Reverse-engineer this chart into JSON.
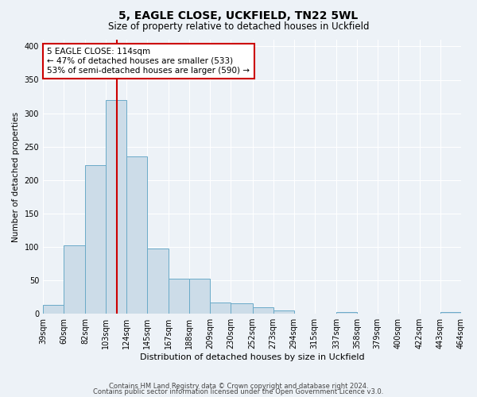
{
  "title": "5, EAGLE CLOSE, UCKFIELD, TN22 5WL",
  "subtitle": "Size of property relative to detached houses in Uckfield",
  "xlabel": "Distribution of detached houses by size in Uckfield",
  "ylabel": "Number of detached properties",
  "bar_values": [
    13,
    102,
    222,
    320,
    235,
    97,
    52,
    52,
    17,
    15,
    10,
    5,
    0,
    0,
    3,
    0,
    0,
    0,
    0,
    3
  ],
  "bin_edges": [
    39,
    60,
    82,
    103,
    124,
    145,
    167,
    188,
    209,
    230,
    252,
    273,
    294,
    315,
    337,
    358,
    379,
    400,
    422,
    443,
    464
  ],
  "tick_labels": [
    "39sqm",
    "60sqm",
    "82sqm",
    "103sqm",
    "124sqm",
    "145sqm",
    "167sqm",
    "188sqm",
    "209sqm",
    "230sqm",
    "252sqm",
    "273sqm",
    "294sqm",
    "315sqm",
    "337sqm",
    "358sqm",
    "379sqm",
    "400sqm",
    "422sqm",
    "443sqm",
    "464sqm"
  ],
  "bar_color": "#ccdce8",
  "bar_edge_color": "#6aaac8",
  "vline_x": 114,
  "vline_color": "#cc0000",
  "annotation_text": "5 EAGLE CLOSE: 114sqm\n← 47% of detached houses are smaller (533)\n53% of semi-detached houses are larger (590) →",
  "annotation_box_color": "#ffffff",
  "annotation_box_edge": "#cc0000",
  "ylim": [
    0,
    410
  ],
  "background_color": "#edf2f7",
  "grid_color": "#ffffff",
  "footer_line1": "Contains HM Land Registry data © Crown copyright and database right 2024.",
  "footer_line2": "Contains public sector information licensed under the Open Government Licence v3.0."
}
